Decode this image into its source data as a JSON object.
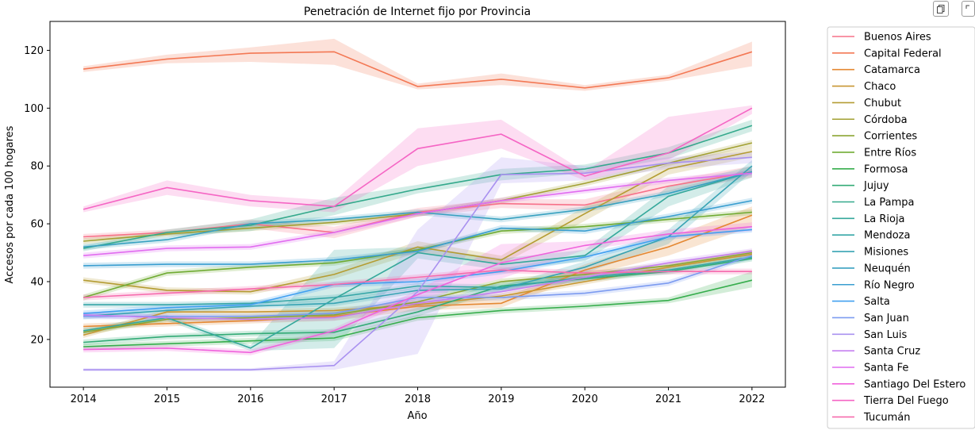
{
  "toolbar": {
    "buttons": [
      {
        "icon": "copy-icon"
      },
      {
        "icon": "expand-icon"
      }
    ]
  },
  "chart_data": {
    "type": "line",
    "title": "Penetración de Internet fijo por Provincia",
    "xlabel": "Año",
    "ylabel": "Accesos por cada 100 hogares",
    "x": [
      2014,
      2015,
      2016,
      2017,
      2018,
      2019,
      2020,
      2021,
      2022
    ],
    "xlim": [
      2013.6,
      2022.4
    ],
    "ylim": [
      3.5,
      130
    ],
    "yticks": [
      20,
      40,
      60,
      80,
      100,
      120
    ],
    "grid": false,
    "legend_position": "outside-right",
    "confidence_bands": true,
    "series": [
      {
        "name": "Buenos Aires",
        "color": "#f77189",
        "values": [
          55.5,
          57,
          60,
          57,
          64,
          67,
          66.5,
          73,
          78
        ],
        "band": [
          [
            54.5,
            56.5
          ],
          [
            56,
            58
          ],
          [
            58.5,
            61.5
          ],
          [
            55,
            59
          ],
          [
            62.5,
            65.5
          ],
          [
            65.5,
            68.5
          ],
          [
            64.5,
            68.5
          ],
          [
            71,
            75
          ],
          [
            76,
            80
          ]
        ]
      },
      {
        "name": "Capital Federal",
        "color": "#f37854",
        "values": [
          113.5,
          117,
          119,
          119.5,
          107.5,
          110,
          107,
          110.5,
          119.5
        ],
        "band": [
          [
            112.5,
            114.5
          ],
          [
            115.5,
            118.5
          ],
          [
            116,
            121
          ],
          [
            115,
            124
          ],
          [
            106.5,
            108.5
          ],
          [
            108,
            112
          ],
          [
            106,
            108
          ],
          [
            109.5,
            111.5
          ],
          [
            114.5,
            123
          ]
        ]
      },
      {
        "name": "Catamarca",
        "color": "#e48832",
        "values": [
          24.5,
          25.5,
          26.5,
          28,
          31.5,
          32.5,
          44,
          52,
          63
        ],
        "band": [
          [
            23.5,
            25.5
          ],
          [
            24.5,
            26.5
          ],
          [
            25.5,
            27.5
          ],
          [
            26.5,
            29.5
          ],
          [
            30,
            33
          ],
          [
            31,
            34
          ],
          [
            42,
            46
          ],
          [
            49,
            55
          ],
          [
            59,
            66
          ]
        ]
      },
      {
        "name": "Chaco",
        "color": "#c89632",
        "values": [
          21.5,
          29.5,
          29.5,
          30,
          32,
          35,
          40,
          45,
          49.5
        ],
        "band": [
          [
            20.5,
            22.5
          ],
          [
            28.5,
            30.5
          ],
          [
            28.5,
            30.5
          ],
          [
            29,
            31
          ],
          [
            31,
            33
          ],
          [
            34,
            36
          ],
          [
            39,
            41
          ],
          [
            44,
            46
          ],
          [
            48,
            51
          ]
        ]
      },
      {
        "name": "Chubut",
        "color": "#b49c32",
        "values": [
          40.5,
          37,
          36.5,
          42.5,
          52,
          47.5,
          63.5,
          79,
          85
        ],
        "band": [
          [
            39.5,
            41.5
          ],
          [
            36,
            38
          ],
          [
            35.5,
            37.5
          ],
          [
            41,
            44
          ],
          [
            50,
            54
          ],
          [
            46,
            49
          ],
          [
            61,
            66
          ],
          [
            77,
            81
          ],
          [
            83,
            87
          ]
        ]
      },
      {
        "name": "Córdoba",
        "color": "#a2a032",
        "values": [
          54,
          56.5,
          58.5,
          60.5,
          63.5,
          68,
          74,
          81,
          88
        ],
        "band": [
          [
            53,
            55
          ],
          [
            55.5,
            57.5
          ],
          [
            57.5,
            59.5
          ],
          [
            59.5,
            61.5
          ],
          [
            62.5,
            64.5
          ],
          [
            67,
            69
          ],
          [
            73,
            75
          ],
          [
            80,
            82
          ],
          [
            87,
            89
          ]
        ]
      },
      {
        "name": "Corrientes",
        "color": "#8ba533",
        "values": [
          22.5,
          27,
          27.5,
          28.5,
          33,
          40,
          42.5,
          45.5,
          50
        ],
        "band": [
          [
            21.5,
            23.5
          ],
          [
            26,
            28
          ],
          [
            26.5,
            28.5
          ],
          [
            27.5,
            29.5
          ],
          [
            32,
            34
          ],
          [
            39,
            41
          ],
          [
            41.5,
            43.5
          ],
          [
            44.5,
            46.5
          ],
          [
            49,
            51
          ]
        ]
      },
      {
        "name": "Entre Ríos",
        "color": "#70ab33",
        "values": [
          34.5,
          43,
          45,
          46.5,
          51,
          57.5,
          59,
          61.5,
          64
        ],
        "band": [
          [
            33.5,
            35.5
          ],
          [
            42,
            44
          ],
          [
            44,
            46
          ],
          [
            45.5,
            47.5
          ],
          [
            50,
            52
          ],
          [
            56.5,
            58.5
          ],
          [
            58,
            60
          ],
          [
            60.5,
            62.5
          ],
          [
            63,
            65
          ]
        ]
      },
      {
        "name": "Formosa",
        "color": "#36ad4c",
        "values": [
          17.5,
          18.5,
          19.5,
          20.5,
          27.5,
          30,
          31.5,
          33.5,
          40.5
        ],
        "band": [
          [
            16.5,
            18.5
          ],
          [
            17.5,
            19.5
          ],
          [
            18.5,
            20.5
          ],
          [
            19.5,
            21.5
          ],
          [
            26.5,
            28.5
          ],
          [
            29,
            31
          ],
          [
            30.5,
            32.5
          ],
          [
            32.5,
            34.5
          ],
          [
            38,
            43.5
          ]
        ]
      },
      {
        "name": "Jujuy",
        "color": "#33ab76",
        "values": [
          19,
          21,
          22,
          22.5,
          29.5,
          38.5,
          41,
          43.5,
          48
        ],
        "band": [
          [
            18,
            20
          ],
          [
            20,
            22
          ],
          [
            21,
            23
          ],
          [
            21.5,
            23.5
          ],
          [
            28,
            31
          ],
          [
            37,
            40
          ],
          [
            40,
            42
          ],
          [
            42.5,
            44.5
          ],
          [
            47,
            49
          ]
        ]
      },
      {
        "name": "La Pampa",
        "color": "#34a98c",
        "values": [
          51.5,
          57,
          59.5,
          66,
          72,
          77,
          79,
          84.5,
          94
        ],
        "band": [
          [
            50.5,
            52.5
          ],
          [
            56,
            58
          ],
          [
            57.5,
            61.5
          ],
          [
            63,
            69
          ],
          [
            70.5,
            73.5
          ],
          [
            75,
            79
          ],
          [
            77.5,
            80.5
          ],
          [
            82.5,
            86.5
          ],
          [
            92,
            96
          ]
        ]
      },
      {
        "name": "La Rioja",
        "color": "#35a89b",
        "values": [
          23,
          27.5,
          17,
          34,
          50,
          46,
          49,
          69.5,
          78
        ],
        "band": [
          [
            22,
            24
          ],
          [
            26.5,
            28.5
          ],
          [
            16,
            18
          ],
          [
            17,
            51
          ],
          [
            48,
            52
          ],
          [
            44,
            48
          ],
          [
            47,
            51
          ],
          [
            66,
            73
          ],
          [
            76,
            80
          ]
        ]
      },
      {
        "name": "Mendoza",
        "color": "#36a6a7",
        "values": [
          32,
          32,
          32.5,
          34.5,
          38.5,
          38,
          41.5,
          44,
          48.5
        ],
        "band": [
          [
            31,
            33
          ],
          [
            31,
            33
          ],
          [
            31.5,
            33.5
          ],
          [
            33.5,
            35.5
          ],
          [
            37.5,
            39.5
          ],
          [
            37,
            39
          ],
          [
            40.5,
            42.5
          ],
          [
            43,
            45
          ],
          [
            47.5,
            49.5
          ]
        ]
      },
      {
        "name": "Misiones",
        "color": "#37a3b3",
        "values": [
          28,
          30,
          31.5,
          32.5,
          37,
          37.5,
          45,
          55.5,
          80
        ],
        "band": [
          [
            27,
            29
          ],
          [
            29,
            31
          ],
          [
            30.5,
            32.5
          ],
          [
            31.5,
            33.5
          ],
          [
            36,
            38
          ],
          [
            36.5,
            38.5
          ],
          [
            43,
            47
          ],
          [
            53,
            58
          ],
          [
            78,
            82
          ]
        ]
      },
      {
        "name": "Neuquén",
        "color": "#38a1c0",
        "values": [
          52,
          54.5,
          60,
          61.5,
          64,
          61.5,
          65,
          70.5,
          78
        ],
        "band": [
          [
            51,
            53
          ],
          [
            53.5,
            55.5
          ],
          [
            59,
            61
          ],
          [
            60.5,
            62.5
          ],
          [
            63,
            65
          ],
          [
            60.5,
            62.5
          ],
          [
            64,
            66
          ],
          [
            69.5,
            71.5
          ],
          [
            77,
            79
          ]
        ]
      },
      {
        "name": "Río Negro",
        "color": "#3a9ed0",
        "values": [
          45.5,
          46,
          46,
          47.5,
          50.5,
          58.5,
          57.5,
          62.5,
          68
        ],
        "band": [
          [
            44.5,
            46.5
          ],
          [
            45,
            47
          ],
          [
            45,
            47
          ],
          [
            46.5,
            48.5
          ],
          [
            49.5,
            51.5
          ],
          [
            57.5,
            59.5
          ],
          [
            56.5,
            58.5
          ],
          [
            61.5,
            63.5
          ],
          [
            67,
            69
          ]
        ]
      },
      {
        "name": "Salta",
        "color": "#41a0f0",
        "values": [
          29,
          31,
          32,
          39,
          40,
          43.5,
          48.5,
          55.5,
          58
        ],
        "band": [
          [
            28,
            30
          ],
          [
            30,
            32
          ],
          [
            31,
            33
          ],
          [
            38,
            40
          ],
          [
            39,
            41
          ],
          [
            42.5,
            44.5
          ],
          [
            47.5,
            49.5
          ],
          [
            54.5,
            56.5
          ],
          [
            57,
            59
          ]
        ]
      },
      {
        "name": "San Juan",
        "color": "#7c9bf0",
        "values": [
          28,
          28,
          28,
          29,
          34.5,
          34.5,
          36,
          39.5,
          49
        ],
        "band": [
          [
            27,
            29
          ],
          [
            27,
            29
          ],
          [
            27,
            29
          ],
          [
            28,
            30
          ],
          [
            33.5,
            35.5
          ],
          [
            33.5,
            35.5
          ],
          [
            35,
            37
          ],
          [
            38.5,
            40.5
          ],
          [
            48,
            50
          ]
        ]
      },
      {
        "name": "San Luis",
        "color": "#a991f0",
        "values": [
          9.5,
          9.5,
          9.5,
          11,
          36.5,
          77,
          77.5,
          81,
          83
        ],
        "band": [
          [
            9,
            10
          ],
          [
            9,
            10
          ],
          [
            9,
            10
          ],
          [
            9.5,
            12.5
          ],
          [
            15,
            58
          ],
          [
            74,
            83
          ],
          [
            75,
            80
          ],
          [
            79,
            83
          ],
          [
            81,
            85
          ]
        ]
      },
      {
        "name": "Santa Cruz",
        "color": "#c57ff0",
        "values": [
          28.5,
          27.5,
          27,
          27.5,
          32.5,
          36.5,
          41.5,
          46.5,
          50.5
        ],
        "band": [
          [
            27.5,
            29.5
          ],
          [
            26.5,
            28.5
          ],
          [
            26,
            28
          ],
          [
            26.5,
            28.5
          ],
          [
            31.5,
            33.5
          ],
          [
            35.5,
            37.5
          ],
          [
            40.5,
            42.5
          ],
          [
            45.5,
            47.5
          ],
          [
            49.5,
            51.5
          ]
        ]
      },
      {
        "name": "Santa Fe",
        "color": "#e16cf0",
        "values": [
          49,
          51.5,
          52,
          57,
          63.5,
          68,
          71.5,
          75,
          77.5
        ],
        "band": [
          [
            48,
            50
          ],
          [
            50.5,
            52.5
          ],
          [
            51,
            53
          ],
          [
            56,
            58
          ],
          [
            62.5,
            64.5
          ],
          [
            67,
            69
          ],
          [
            70.5,
            72.5
          ],
          [
            74,
            76
          ],
          [
            76.5,
            78.5
          ]
        ]
      },
      {
        "name": "Santiago Del Estero",
        "color": "#f062dc",
        "values": [
          16.5,
          17,
          15.5,
          23,
          35.5,
          46.5,
          52.5,
          56.5,
          59
        ],
        "band": [
          [
            15.5,
            17.5
          ],
          [
            16,
            18
          ],
          [
            14.5,
            16.5
          ],
          [
            22,
            24
          ],
          [
            34,
            37
          ],
          [
            41,
            53
          ],
          [
            51,
            54
          ],
          [
            55,
            58
          ],
          [
            57.5,
            60.5
          ]
        ]
      },
      {
        "name": "Tierra Del Fuego",
        "color": "#f565c4",
        "values": [
          65,
          72.5,
          68,
          66,
          86,
          91,
          76.5,
          84.5,
          100
        ],
        "band": [
          [
            64,
            66
          ],
          [
            70,
            75
          ],
          [
            66,
            70
          ],
          [
            64,
            68
          ],
          [
            80,
            93
          ],
          [
            86,
            96
          ],
          [
            75,
            78
          ],
          [
            82,
            97
          ],
          [
            98,
            101
          ]
        ]
      },
      {
        "name": "Tucumán",
        "color": "#f66bad",
        "values": [
          34.5,
          36,
          37.5,
          39,
          41.5,
          44,
          43,
          43.5,
          43.5
        ],
        "band": [
          [
            33.5,
            35.5
          ],
          [
            35,
            37
          ],
          [
            36.5,
            38.5
          ],
          [
            38,
            40
          ],
          [
            40.5,
            42.5
          ],
          [
            43,
            45
          ],
          [
            42,
            44
          ],
          [
            42.5,
            44.5
          ],
          [
            42.5,
            44.5
          ]
        ]
      }
    ]
  }
}
